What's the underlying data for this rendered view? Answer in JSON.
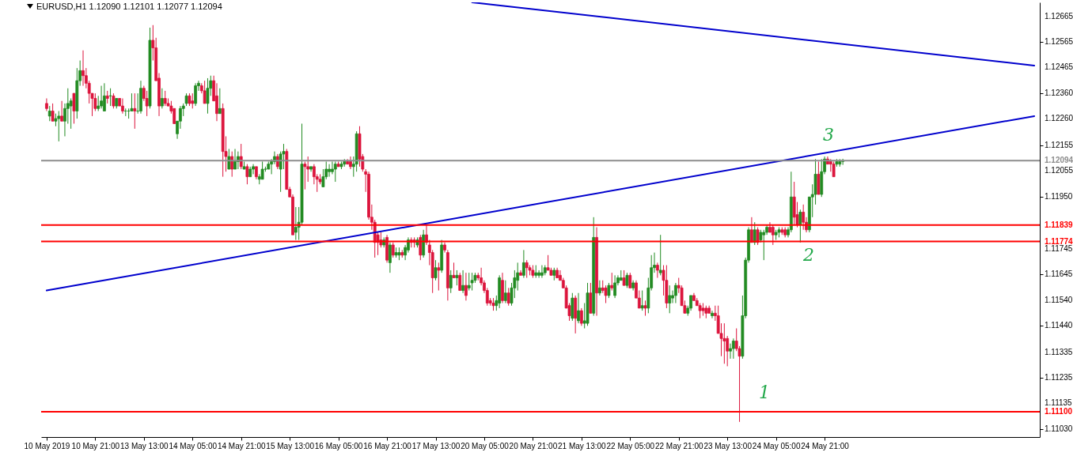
{
  "chart_data": {
    "type": "candlestick",
    "title": "EURUSD,H1 1.12090 1.12101 1.12077 1.12094",
    "categories": [
      "10 May 2019",
      null,
      null,
      null,
      null,
      null,
      null,
      null,
      null,
      null,
      null,
      null,
      null,
      null,
      null,
      null,
      "10 May 21:00",
      null,
      null,
      null,
      null,
      null,
      null,
      null,
      null,
      null,
      null,
      null,
      null,
      null,
      null,
      null,
      "13 May 13:00",
      null,
      null,
      null,
      null,
      null,
      null,
      null,
      null,
      null,
      null,
      null,
      null,
      null,
      null,
      null,
      "14 May 05:00",
      null,
      null,
      null,
      null,
      null,
      null,
      null,
      null,
      null,
      null,
      null,
      null,
      null,
      null,
      null,
      "14 May 21:00",
      null,
      null,
      null,
      null,
      null,
      null,
      null,
      null,
      null,
      null,
      null,
      null,
      null,
      null,
      null,
      "15 May 13:00",
      null,
      null,
      null,
      null,
      null,
      null,
      null,
      null,
      null,
      null,
      null,
      null,
      null,
      null,
      null,
      "16 May 05:00",
      null,
      null,
      null,
      null,
      null,
      null,
      null,
      null,
      null,
      null,
      null,
      null,
      null,
      null,
      null,
      "16 May 21:00",
      null,
      null,
      null,
      null,
      null,
      null,
      null,
      null,
      null,
      null,
      null,
      null,
      null,
      null,
      null,
      "17 May 13:00",
      null,
      null,
      null,
      null,
      null,
      null,
      null,
      null,
      null,
      null,
      null,
      null,
      null,
      null,
      null,
      "20 May 05:00",
      null,
      null,
      null,
      null,
      null,
      null,
      null,
      null,
      null,
      null,
      null,
      null,
      null,
      null,
      null,
      "20 May 21:00",
      null,
      null,
      null,
      null,
      null,
      null,
      null,
      null,
      null,
      null,
      null,
      null,
      null,
      null,
      null,
      "21 May 13:00",
      null,
      null,
      null,
      null,
      null,
      null,
      null,
      null,
      null,
      null,
      null,
      null,
      null,
      null,
      null,
      "22 May 05:00",
      null,
      null,
      null,
      null,
      null,
      null,
      null,
      null,
      null,
      null,
      null,
      null,
      null,
      null,
      null,
      "22 May 21:00",
      null,
      null,
      null,
      null,
      null,
      null,
      null,
      null,
      null,
      null,
      null,
      null,
      null,
      null,
      null,
      "23 May 13:00",
      null,
      null,
      null,
      null,
      null,
      null,
      null,
      null,
      null,
      null,
      null,
      null,
      null,
      null,
      null,
      "24 May 05:00",
      null,
      null,
      null,
      null,
      null,
      null,
      null,
      null,
      null,
      null,
      null,
      null,
      null,
      null,
      null,
      "24 May 21:00",
      null,
      null,
      null,
      null,
      null,
      null,
      null,
      null,
      null,
      null,
      null,
      null,
      null,
      null,
      null,
      null,
      null,
      null,
      null,
      null,
      null,
      null,
      null,
      null,
      null,
      null,
      null,
      null,
      null,
      null,
      null,
      null,
      null,
      null,
      null,
      null,
      null,
      null,
      null,
      null,
      null,
      null,
      null,
      null,
      null,
      null,
      null,
      null,
      null,
      null,
      null,
      null,
      null,
      null,
      null,
      null,
      null,
      null,
      null,
      null,
      null,
      null,
      null,
      null,
      null,
      null,
      null,
      null,
      null
    ],
    "ohlc": [
      [
        1.1232,
        1.1234,
        1.1229,
        1.123
      ],
      [
        1.1227,
        1.1231,
        1.1225,
        1.1229
      ],
      [
        1.1229,
        1.1232,
        1.1225,
        1.1225
      ],
      [
        1.1225,
        1.1228,
        1.1223,
        1.1226
      ],
      [
        1.1226,
        1.1229,
        1.1217,
        1.1227
      ],
      [
        1.1227,
        1.1233,
        1.1225,
        1.1225
      ],
      [
        1.1225,
        1.1232,
        1.1219,
        1.123
      ],
      [
        1.123,
        1.1238,
        1.1224,
        1.1232
      ],
      [
        1.1231,
        1.1234,
        1.1222,
        1.1233
      ],
      [
        1.1236,
        1.1236,
        1.1224,
        1.1229
      ],
      [
        1.1229,
        1.1246,
        1.1226,
        1.1241
      ],
      [
        1.1241,
        1.1249,
        1.1239,
        1.1245
      ],
      [
        1.1245,
        1.1253,
        1.1239,
        1.1243
      ],
      [
        1.1243,
        1.1246,
        1.1238,
        1.124
      ],
      [
        1.124,
        1.1241,
        1.1232,
        1.1236
      ],
      [
        1.1236,
        1.1236,
        1.1227,
        1.1234
      ],
      [
        1.1234,
        1.1236,
        1.1229,
        1.123
      ],
      [
        1.123,
        1.1235,
        1.1229,
        1.1231
      ],
      [
        1.1231,
        1.1239,
        1.123,
        1.1233
      ],
      [
        1.1229,
        1.124,
        1.1229,
        1.1235
      ],
      [
        1.1235,
        1.1237,
        1.1232,
        1.1234
      ],
      [
        1.1235,
        1.1238,
        1.1231,
        1.1235
      ],
      [
        1.1235,
        1.1236,
        1.123,
        1.1231
      ],
      [
        1.1231,
        1.1234,
        1.123,
        1.1234
      ],
      [
        1.1234,
        1.1234,
        1.1231,
        1.1231
      ],
      [
        1.1231,
        1.1234,
        1.1228,
        1.1229
      ],
      [
        1.1229,
        1.123,
        1.1227,
        1.1229
      ],
      [
        1.1229,
        1.123,
        1.1226,
        1.1229
      ],
      [
        1.1229,
        1.1236,
        1.1229,
        1.123
      ],
      [
        1.123,
        1.1236,
        1.1222,
        1.1229
      ],
      [
        1.1229,
        1.1236,
        1.1228,
        1.1229
      ],
      [
        1.1229,
        1.1241,
        1.1228,
        1.1238
      ],
      [
        1.1238,
        1.1239,
        1.1233,
        1.1234
      ],
      [
        1.1234,
        1.1237,
        1.1227,
        1.1231
      ],
      [
        1.1231,
        1.1262,
        1.123,
        1.1257
      ],
      [
        1.1257,
        1.1263,
        1.1249,
        1.1254
      ],
      [
        1.1254,
        1.1258,
        1.1241,
        1.1241
      ],
      [
        1.1242,
        1.1244,
        1.1227,
        1.1231
      ],
      [
        1.1231,
        1.1238,
        1.123,
        1.1234
      ],
      [
        1.1234,
        1.1237,
        1.1231,
        1.1232
      ],
      [
        1.1232,
        1.1234,
        1.1231,
        1.1231
      ],
      [
        1.1231,
        1.1233,
        1.1228,
        1.1229
      ],
      [
        1.123,
        1.123,
        1.1224,
        1.1224
      ],
      [
        1.122,
        1.1225,
        1.1218,
        1.1225
      ],
      [
        1.1225,
        1.1231,
        1.1222,
        1.123
      ],
      [
        1.123,
        1.1232,
        1.1227,
        1.1231
      ],
      [
        1.1232,
        1.1236,
        1.1231,
        1.1235
      ],
      [
        1.1235,
        1.1236,
        1.1231,
        1.1232
      ],
      [
        1.1233,
        1.1236,
        1.123,
        1.1232
      ],
      [
        1.1232,
        1.124,
        1.1231,
        1.1239
      ],
      [
        1.1239,
        1.1241,
        1.1237,
        1.124
      ],
      [
        1.1239,
        1.124,
        1.1236,
        1.1237
      ],
      [
        1.1237,
        1.1241,
        1.1232,
        1.1232
      ],
      [
        1.1232,
        1.1242,
        1.1228,
        1.1238
      ],
      [
        1.1238,
        1.1243,
        1.1235,
        1.1241
      ],
      [
        1.1241,
        1.1243,
        1.1233,
        1.1233
      ],
      [
        1.1235,
        1.124,
        1.1225,
        1.1228
      ],
      [
        1.1228,
        1.1238,
        1.1228,
        1.123
      ],
      [
        1.123,
        1.1232,
        1.1203,
        1.1213
      ],
      [
        1.1213,
        1.1219,
        1.1205,
        1.1211
      ],
      [
        1.1206,
        1.1214,
        1.1206,
        1.1211
      ],
      [
        1.1211,
        1.1213,
        1.1203,
        1.1206
      ],
      [
        1.1206,
        1.1214,
        1.1206,
        1.1209
      ],
      [
        1.1209,
        1.1213,
        1.1206,
        1.1211
      ],
      [
        1.1211,
        1.1216,
        1.1206,
        1.1207
      ],
      [
        1.1206,
        1.1209,
        1.1206,
        1.1207
      ],
      [
        1.1207,
        1.1208,
        1.12,
        1.1203
      ],
      [
        1.1203,
        1.1207,
        1.1203,
        1.1206
      ],
      [
        1.1206,
        1.1208,
        1.1204,
        1.1207
      ],
      [
        1.1207,
        1.1207,
        1.1202,
        1.1203
      ],
      [
        1.1202,
        1.1204,
        1.12,
        1.1203
      ],
      [
        1.1202,
        1.1209,
        1.1202,
        1.1206
      ],
      [
        1.1206,
        1.1207,
        1.1205,
        1.1206
      ],
      [
        1.1206,
        1.1209,
        1.1206,
        1.1208
      ],
      [
        1.1208,
        1.121,
        1.1204,
        1.1209
      ],
      [
        1.1209,
        1.1213,
        1.1208,
        1.1211
      ],
      [
        1.1211,
        1.1212,
        1.1206,
        1.1207
      ],
      [
        1.1206,
        1.1213,
        1.1197,
        1.1212
      ],
      [
        1.1212,
        1.1216,
        1.1206,
        1.1213
      ],
      [
        1.1213,
        1.1214,
        1.1198,
        1.1198
      ],
      [
        1.1198,
        1.1199,
        1.1195,
        1.1195
      ],
      [
        1.1195,
        1.1196,
        1.118,
        1.118
      ],
      [
        1.1181,
        1.1191,
        1.1178,
        1.1183
      ],
      [
        1.1183,
        1.1191,
        1.1178,
        1.1185
      ],
      [
        1.1185,
        1.1224,
        1.1184,
        1.1208
      ],
      [
        1.1208,
        1.1209,
        1.1198,
        1.1207
      ],
      [
        1.1207,
        1.1211,
        1.1201,
        1.1206
      ],
      [
        1.1206,
        1.1207,
        1.1205,
        1.1207
      ],
      [
        1.1207,
        1.1208,
        1.12,
        1.1203
      ],
      [
        1.1203,
        1.1204,
        1.1197,
        1.1202
      ],
      [
        1.1202,
        1.1204,
        1.12,
        1.1201
      ],
      [
        1.1199,
        1.1206,
        1.1199,
        1.1203
      ],
      [
        1.1203,
        1.1209,
        1.1202,
        1.1206
      ],
      [
        1.1205,
        1.1208,
        1.1203,
        1.1206
      ],
      [
        1.1205,
        1.1209,
        1.1204,
        1.1206
      ],
      [
        1.1206,
        1.1209,
        1.1201,
        1.1208
      ],
      [
        1.1208,
        1.1209,
        1.1207,
        1.1207
      ],
      [
        1.1207,
        1.1209,
        1.1206,
        1.1208
      ],
      [
        1.1208,
        1.121,
        1.1207,
        1.1209
      ],
      [
        1.1209,
        1.121,
        1.1208,
        1.1208
      ],
      [
        1.1209,
        1.1211,
        1.1206,
        1.1207
      ],
      [
        1.1207,
        1.1211,
        1.1203,
        1.1208
      ],
      [
        1.1208,
        1.1221,
        1.1205,
        1.122
      ],
      [
        1.122,
        1.1223,
        1.1207,
        1.121
      ],
      [
        1.1211,
        1.1212,
        1.1205,
        1.1206
      ],
      [
        1.1205,
        1.1206,
        1.1197,
        1.1204
      ],
      [
        1.1204,
        1.1205,
        1.1186,
        1.1187
      ],
      [
        1.1187,
        1.1192,
        1.1182,
        1.1185
      ],
      [
        1.1185,
        1.1186,
        1.1171,
        1.1177
      ],
      [
        1.118,
        1.1181,
        1.1172,
        1.1177
      ],
      [
        1.1178,
        1.1181,
        1.1175,
        1.1176
      ],
      [
        1.1176,
        1.1179,
        1.1175,
        1.1178
      ],
      [
        1.1179,
        1.118,
        1.1169,
        1.117
      ],
      [
        1.1169,
        1.1177,
        1.1165,
        1.1176
      ],
      [
        1.1176,
        1.1177,
        1.1171,
        1.1172
      ],
      [
        1.1172,
        1.1175,
        1.1171,
        1.1173
      ],
      [
        1.1172,
        1.1175,
        1.117,
        1.1173
      ],
      [
        1.1173,
        1.1174,
        1.1171,
        1.1172
      ],
      [
        1.1172,
        1.1176,
        1.117,
        1.1175
      ],
      [
        1.1174,
        1.1179,
        1.1173,
        1.1178
      ],
      [
        1.1178,
        1.1179,
        1.1175,
        1.1177
      ],
      [
        1.1178,
        1.1179,
        1.1175,
        1.1177
      ],
      [
        1.1176,
        1.1179,
        1.1175,
        1.1178
      ],
      [
        1.1179,
        1.118,
        1.117,
        1.1172
      ],
      [
        1.1172,
        1.1182,
        1.1171,
        1.118
      ],
      [
        1.118,
        1.1184,
        1.1176,
        1.1177
      ],
      [
        1.1176,
        1.1178,
        1.1168,
        1.1173
      ],
      [
        1.1173,
        1.1174,
        1.1157,
        1.1163
      ],
      [
        1.1163,
        1.117,
        1.1162,
        1.1167
      ],
      [
        1.1167,
        1.1169,
        1.1158,
        1.1166
      ],
      [
        1.1166,
        1.1178,
        1.1165,
        1.1176
      ],
      [
        1.1176,
        1.1177,
        1.1173,
        1.1174
      ],
      [
        1.1173,
        1.1174,
        1.1154,
        1.1159
      ],
      [
        1.1159,
        1.1166,
        1.1157,
        1.1164
      ],
      [
        1.1164,
        1.1169,
        1.1163,
        1.1163
      ],
      [
        1.1163,
        1.1166,
        1.116,
        1.1164
      ],
      [
        1.1164,
        1.1165,
        1.1158,
        1.1158
      ],
      [
        1.1158,
        1.1166,
        1.1157,
        1.116
      ],
      [
        1.116,
        1.1165,
        1.1154,
        1.1156
      ],
      [
        1.1159,
        1.1165,
        1.1158,
        1.116
      ],
      [
        1.1161,
        1.1165,
        1.1158,
        1.1162
      ],
      [
        1.1162,
        1.1165,
        1.1161,
        1.1164
      ],
      [
        1.1164,
        1.1165,
        1.1162,
        1.1163
      ],
      [
        1.1163,
        1.1167,
        1.116,
        1.1161
      ],
      [
        1.1161,
        1.1162,
        1.1157,
        1.1158
      ],
      [
        1.1158,
        1.1159,
        1.1152,
        1.1153
      ],
      [
        1.1154,
        1.1155,
        1.1152,
        1.1153
      ],
      [
        1.1153,
        1.1155,
        1.115,
        1.1152
      ],
      [
        1.1152,
        1.1156,
        1.115,
        1.1154
      ],
      [
        1.1153,
        1.1164,
        1.1151,
        1.1163
      ],
      [
        1.1162,
        1.1165,
        1.1153,
        1.1154
      ],
      [
        1.1154,
        1.1162,
        1.1153,
        1.1157
      ],
      [
        1.1157,
        1.1159,
        1.1152,
        1.1153
      ],
      [
        1.1153,
        1.1161,
        1.1152,
        1.1159
      ],
      [
        1.1159,
        1.1166,
        1.1155,
        1.1163
      ],
      [
        1.1162,
        1.1169,
        1.1158,
        1.1165
      ],
      [
        1.1165,
        1.1166,
        1.1164,
        1.1164
      ],
      [
        1.1164,
        1.1174,
        1.1163,
        1.1169
      ],
      [
        1.1169,
        1.117,
        1.1163,
        1.1167
      ],
      [
        1.1167,
        1.1168,
        1.1164,
        1.1166
      ],
      [
        1.1166,
        1.1168,
        1.1163,
        1.1164
      ],
      [
        1.1164,
        1.1168,
        1.1163,
        1.1165
      ],
      [
        1.1164,
        1.1166,
        1.1163,
        1.1165
      ],
      [
        1.1164,
        1.1168,
        1.1163,
        1.1165
      ],
      [
        1.1165,
        1.1168,
        1.1164,
        1.1167
      ],
      [
        1.1167,
        1.1172,
        1.1166,
        1.1166
      ],
      [
        1.1166,
        1.1167,
        1.1164,
        1.1164
      ],
      [
        1.1164,
        1.1167,
        1.1162,
        1.1166
      ],
      [
        1.1166,
        1.1167,
        1.1163,
        1.1163
      ],
      [
        1.1164,
        1.1166,
        1.1162,
        1.1162
      ],
      [
        1.1162,
        1.1163,
        1.1159,
        1.1159
      ],
      [
        1.1159,
        1.116,
        1.1151,
        1.1151
      ],
      [
        1.1152,
        1.1153,
        1.1146,
        1.1148
      ],
      [
        1.1147,
        1.1157,
        1.1146,
        1.1155
      ],
      [
        1.1155,
        1.1156,
        1.1141,
        1.1147
      ],
      [
        1.1146,
        1.1157,
        1.1145,
        1.115
      ],
      [
        1.115,
        1.1151,
        1.1144,
        1.1145
      ],
      [
        1.1145,
        1.1153,
        1.1143,
        1.1146
      ],
      [
        1.1145,
        1.1161,
        1.1144,
        1.1157
      ],
      [
        1.1157,
        1.1161,
        1.1149,
        1.1149
      ],
      [
        1.1149,
        1.1187,
        1.1148,
        1.1179
      ],
      [
        1.1179,
        1.1183,
        1.1148,
        1.1157
      ],
      [
        1.1157,
        1.1162,
        1.1156,
        1.1159
      ],
      [
        1.1159,
        1.1162,
        1.1157,
        1.1158
      ],
      [
        1.1159,
        1.116,
        1.1153,
        1.1156
      ],
      [
        1.1156,
        1.1161,
        1.1155,
        1.116
      ],
      [
        1.116,
        1.1165,
        1.1158,
        1.1159
      ],
      [
        1.1156,
        1.1164,
        1.1155,
        1.1161
      ],
      [
        1.1161,
        1.1164,
        1.116,
        1.1163
      ],
      [
        1.1162,
        1.1166,
        1.1162,
        1.1163
      ],
      [
        1.1163,
        1.1166,
        1.116,
        1.116
      ],
      [
        1.116,
        1.1165,
        1.1159,
        1.1164
      ],
      [
        1.1164,
        1.1165,
        1.1159,
        1.1159
      ],
      [
        1.1159,
        1.1162,
        1.1158,
        1.1161
      ],
      [
        1.1161,
        1.1162,
        1.1155,
        1.1155
      ],
      [
        1.1155,
        1.1158,
        1.1151,
        1.1151
      ],
      [
        1.1151,
        1.1158,
        1.115,
        1.1152
      ],
      [
        1.1152,
        1.1154,
        1.1148,
        1.1151
      ],
      [
        1.1151,
        1.1163,
        1.1149,
        1.1159
      ],
      [
        1.1159,
        1.1172,
        1.1158,
        1.1167
      ],
      [
        1.1167,
        1.1173,
        1.1165,
        1.1168
      ],
      [
        1.1168,
        1.1169,
        1.1163,
        1.1166
      ],
      [
        1.1165,
        1.118,
        1.1164,
        1.1166
      ],
      [
        1.1166,
        1.1168,
        1.1156,
        1.1162
      ],
      [
        1.1162,
        1.1168,
        1.1151,
        1.1153
      ],
      [
        1.1153,
        1.116,
        1.1149,
        1.1156
      ],
      [
        1.1155,
        1.1158,
        1.1153,
        1.1156
      ],
      [
        1.1156,
        1.1161,
        1.1153,
        1.116
      ],
      [
        1.116,
        1.1163,
        1.1157,
        1.1159
      ],
      [
        1.1159,
        1.116,
        1.1152,
        1.1152
      ],
      [
        1.1152,
        1.1154,
        1.1149,
        1.1149
      ],
      [
        1.1149,
        1.1152,
        1.1148,
        1.1151
      ],
      [
        1.1151,
        1.1156,
        1.115,
        1.1156
      ],
      [
        1.1156,
        1.1157,
        1.1154,
        1.1154
      ],
      [
        1.1154,
        1.1155,
        1.1152,
        1.1152
      ],
      [
        1.1152,
        1.1153,
        1.1147,
        1.115
      ],
      [
        1.1151,
        1.1153,
        1.1148,
        1.115
      ],
      [
        1.1151,
        1.1152,
        1.1147,
        1.1149
      ],
      [
        1.1151,
        1.1152,
        1.1149,
        1.1149
      ],
      [
        1.1148,
        1.115,
        1.1147,
        1.1149
      ],
      [
        1.1149,
        1.1152,
        1.1146,
        1.1148
      ],
      [
        1.1148,
        1.1152,
        1.1141,
        1.1141
      ],
      [
        1.1141,
        1.1145,
        1.1132,
        1.1139
      ],
      [
        1.1139,
        1.1145,
        1.1129,
        1.1138
      ],
      [
        1.1139,
        1.114,
        1.1128,
        1.1134
      ],
      [
        1.1134,
        1.1137,
        1.1131,
        1.1135
      ],
      [
        1.1135,
        1.1139,
        1.1131,
        1.1138
      ],
      [
        1.1138,
        1.1143,
        1.1134,
        1.1135
      ],
      [
        1.1135,
        1.1136,
        1.1106,
        1.1132
      ],
      [
        1.1132,
        1.1156,
        1.1131,
        1.1148
      ],
      [
        1.1148,
        1.1171,
        1.1147,
        1.117
      ],
      [
        1.117,
        1.1183,
        1.1169,
        1.1182
      ],
      [
        1.1182,
        1.1187,
        1.1177,
        1.1177
      ],
      [
        1.1177,
        1.1185,
        1.1176,
        1.1182
      ],
      [
        1.1182,
        1.1183,
        1.1176,
        1.1177
      ],
      [
        1.1178,
        1.1182,
        1.1177,
        1.1181
      ],
      [
        1.118,
        1.1182,
        1.117,
        1.1181
      ],
      [
        1.1181,
        1.1184,
        1.118,
        1.1183
      ],
      [
        1.1183,
        1.1185,
        1.1181,
        1.1181
      ],
      [
        1.1183,
        1.1184,
        1.1176,
        1.118
      ],
      [
        1.118,
        1.1182,
        1.1178,
        1.1181
      ],
      [
        1.1181,
        1.1183,
        1.1179,
        1.1182
      ],
      [
        1.1182,
        1.1183,
        1.118,
        1.1181
      ],
      [
        1.1182,
        1.1183,
        1.1179,
        1.118
      ],
      [
        1.118,
        1.1183,
        1.1179,
        1.1182
      ],
      [
        1.1182,
        1.1205,
        1.1181,
        1.1195
      ],
      [
        1.1195,
        1.1201,
        1.1184,
        1.1187
      ],
      [
        1.1188,
        1.1193,
        1.1183,
        1.1184
      ],
      [
        1.1184,
        1.119,
        1.1177,
        1.1189
      ],
      [
        1.1189,
        1.1192,
        1.1182,
        1.1185
      ],
      [
        1.1185,
        1.1187,
        1.1181,
        1.1182
      ],
      [
        1.1182,
        1.1195,
        1.1181,
        1.1195
      ],
      [
        1.1195,
        1.12,
        1.1187,
        1.1196
      ],
      [
        1.1196,
        1.121,
        1.1192,
        1.1204
      ],
      [
        1.1204,
        1.1209,
        1.1196,
        1.1196
      ],
      [
        1.1196,
        1.121,
        1.1195,
        1.1205
      ],
      [
        1.1205,
        1.1211,
        1.1204,
        1.121
      ],
      [
        1.121,
        1.1211,
        1.1208,
        1.1208
      ],
      [
        1.1209,
        1.121,
        1.1205,
        1.1208
      ],
      [
        1.1208,
        1.1209,
        1.1203,
        1.1203
      ],
      [
        1.1208,
        1.121,
        1.1207,
        1.1209
      ],
      [
        1.1208,
        1.121,
        1.1207,
        1.1209
      ],
      [
        1.1209,
        1.12101,
        1.12077,
        1.12094
      ],
      null,
      null,
      null,
      null,
      null,
      null,
      null,
      null,
      null,
      null,
      null,
      null,
      null,
      null,
      null,
      null,
      null,
      null,
      null,
      null,
      null,
      null,
      null,
      null,
      null,
      null,
      null,
      null,
      null,
      null,
      null,
      null,
      null,
      null,
      null,
      null,
      null,
      null,
      null,
      null,
      null,
      null,
      null,
      null,
      null,
      null,
      null,
      null,
      null,
      null,
      null,
      null,
      null,
      null,
      null,
      null,
      null,
      null,
      null,
      null,
      null,
      null,
      null
    ],
    "series": [
      {
        "type": "line",
        "color": "#0000cd",
        "values": [
          null,
          null,
          null,
          null,
          null,
          null,
          null,
          null,
          null,
          null,
          null,
          null,
          null,
          null,
          null,
          null,
          null,
          null,
          null,
          null,
          null,
          null,
          null,
          null,
          null,
          null,
          null,
          null,
          null,
          null,
          null,
          null,
          null,
          null,
          null,
          null,
          null,
          null,
          null,
          null,
          null,
          null,
          null,
          null,
          null,
          null,
          null,
          null,
          null,
          null,
          null,
          null,
          null,
          null,
          null,
          null,
          null,
          null,
          null,
          null,
          null,
          null,
          null,
          null,
          null,
          null,
          null,
          null,
          null,
          null,
          null,
          null,
          null,
          null,
          null,
          null,
          null,
          null,
          null,
          null,
          null,
          null,
          null,
          null,
          null,
          null,
          null,
          null,
          null,
          null,
          null,
          null,
          null,
          null,
          null,
          null,
          null,
          null,
          null,
          null,
          null,
          null,
          null,
          null,
          null,
          null,
          null,
          null,
          null,
          null,
          null,
          null,
          null,
          null,
          null,
          null,
          null,
          null,
          null,
          null,
          null,
          null,
          null,
          null,
          null,
          null,
          null,
          null,
          null,
          null,
          null,
          null,
          null,
          null,
          null,
          null,
          null,
          null,
          null,
          null,
          1.1272,
          null,
          null,
          null,
          null,
          null,
          null,
          null,
          null,
          null,
          null,
          null,
          null,
          null,
          null,
          null,
          null,
          null,
          null,
          null,
          null,
          null,
          null,
          null,
          null,
          null,
          null,
          null,
          null,
          null,
          null,
          null,
          null,
          null,
          null,
          null,
          null,
          null,
          null,
          null,
          null,
          null,
          null,
          null,
          null,
          null,
          null,
          null,
          null,
          null,
          null,
          null,
          null,
          null,
          null,
          null,
          null,
          null,
          null,
          null,
          null,
          null,
          null,
          null,
          null,
          null,
          null,
          null,
          null,
          null,
          null,
          null,
          null,
          null,
          null,
          null,
          null,
          null,
          null,
          null,
          null,
          null,
          null,
          null,
          null,
          null,
          null,
          null,
          null,
          null,
          null,
          null,
          null,
          null,
          null,
          null,
          null,
          null,
          null,
          null,
          null,
          null,
          null,
          null,
          null,
          null,
          null,
          null,
          null,
          null,
          null,
          null,
          null,
          null,
          null,
          null,
          null,
          null,
          null,
          null,
          null,
          null,
          null,
          null,
          null,
          null,
          null,
          null,
          null,
          null,
          null,
          null,
          null,
          null,
          null,
          null,
          null,
          null,
          null,
          null,
          null,
          null,
          null,
          null,
          null,
          null,
          null,
          null,
          null,
          null,
          null,
          null,
          null,
          null,
          null,
          null,
          null,
          null,
          null,
          null,
          null,
          null,
          null,
          null,
          null,
          null,
          null,
          null,
          null,
          null,
          null,
          null,
          null,
          null,
          null,
          null,
          null,
          null,
          null,
          null,
          null,
          null,
          null,
          null,
          null,
          1.1247
        ]
      },
      {
        "type": "line",
        "color": "#0000cd",
        "values": [
          1.1158,
          null,
          null,
          null,
          null,
          null,
          null,
          null,
          null,
          null,
          null,
          null,
          null,
          null,
          null,
          null,
          null,
          null,
          null,
          null,
          null,
          null,
          null,
          null,
          null,
          null,
          null,
          null,
          null,
          null,
          null,
          null,
          null,
          null,
          null,
          null,
          null,
          null,
          null,
          null,
          null,
          null,
          null,
          null,
          null,
          null,
          null,
          null,
          null,
          null,
          null,
          null,
          null,
          null,
          null,
          null,
          null,
          null,
          null,
          null,
          null,
          null,
          null,
          null,
          null,
          null,
          null,
          null,
          null,
          null,
          null,
          null,
          null,
          null,
          null,
          null,
          null,
          null,
          null,
          null,
          null,
          null,
          null,
          null,
          null,
          null,
          null,
          null,
          null,
          null,
          null,
          null,
          null,
          null,
          null,
          null,
          null,
          null,
          null,
          null,
          null,
          null,
          null,
          null,
          null,
          null,
          null,
          null,
          null,
          null,
          null,
          null,
          null,
          null,
          null,
          null,
          null,
          null,
          null,
          null,
          null,
          null,
          null,
          null,
          null,
          null,
          null,
          null,
          null,
          null,
          null,
          null,
          null,
          null,
          null,
          null,
          null,
          null,
          null,
          null,
          null,
          null,
          null,
          null,
          null,
          null,
          null,
          null,
          null,
          null,
          null,
          null,
          null,
          null,
          null,
          null,
          null,
          null,
          null,
          null,
          null,
          null,
          null,
          null,
          null,
          null,
          null,
          null,
          null,
          null,
          null,
          null,
          null,
          null,
          null,
          null,
          null,
          null,
          null,
          null,
          null,
          null,
          null,
          null,
          null,
          null,
          null,
          null,
          null,
          null,
          null,
          null,
          null,
          null,
          null,
          null,
          null,
          null,
          null,
          null,
          null,
          null,
          null,
          null,
          null,
          null,
          null,
          null,
          null,
          null,
          null,
          null,
          null,
          null,
          null,
          null,
          null,
          null,
          null,
          null,
          null,
          null,
          null,
          null,
          null,
          null,
          null,
          null,
          null,
          null,
          null,
          null,
          null,
          null,
          null,
          null,
          null,
          null,
          null,
          null,
          null,
          null,
          null,
          null,
          null,
          null,
          null,
          null,
          null,
          null,
          null,
          null,
          null,
          null,
          null,
          null,
          null,
          null,
          null,
          null,
          null,
          null,
          null,
          null,
          null,
          null,
          null,
          null,
          null,
          null,
          null,
          null,
          null,
          null,
          null,
          null,
          null,
          null,
          null,
          null,
          null,
          null,
          null,
          null,
          null,
          null,
          null,
          null,
          null,
          null,
          null,
          null,
          null,
          null,
          null,
          null,
          null,
          null,
          null,
          null,
          null,
          null,
          null,
          null,
          null,
          null,
          null,
          null,
          null,
          null,
          null,
          null,
          null,
          null,
          null,
          null,
          null,
          null,
          null,
          null,
          null,
          null,
          null,
          null,
          null,
          1.1227
        ]
      }
    ],
    "ref_lines": [
      {
        "axis": "y",
        "value": 1.12094,
        "label": "1.12094",
        "color": "#8c8c8c"
      },
      {
        "axis": "y",
        "value": 1.11839,
        "label": "1.11839",
        "color": "#ff0000"
      },
      {
        "axis": "y",
        "value": 1.11774,
        "label": "1.11774",
        "color": "#ff0000"
      },
      {
        "axis": "y",
        "value": 1.111,
        "label": "1.11100",
        "color": "#ff0000"
      }
    ],
    "annotations": [
      "1",
      "2",
      "3"
    ],
    "ylim": [
      1.11,
      1.1272
    ],
    "yticks": [
      1.12665,
      1.12565,
      1.12465,
      {
        "value": 1.1236,
        "label": "1.12360"
      },
      {
        "value": 1.1226,
        "label": "1.12260"
      },
      1.12155,
      1.12055,
      {
        "value": 1.1195,
        "label": "1.11950"
      },
      1.11745,
      1.11645,
      {
        "value": 1.1154,
        "label": "1.11540"
      },
      {
        "value": 1.1144,
        "label": "1.11440"
      },
      1.11335,
      1.11235,
      1.11135,
      {
        "value": 1.1103,
        "label": "1.11030"
      }
    ]
  }
}
